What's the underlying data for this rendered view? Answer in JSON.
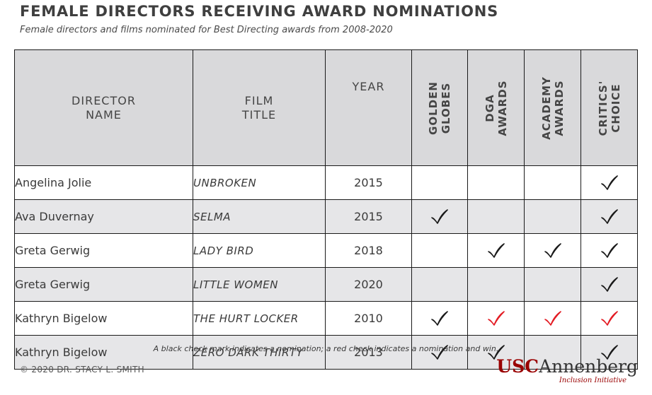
{
  "title": "FEMALE DIRECTORS RECEIVING AWARD NOMINATIONS",
  "subtitle": "Female directors and films nominated for Best Directing awards from 2008-2020",
  "colors": {
    "nomination": "#1a1a1a",
    "win": "#e31b23",
    "header_bg": "#d9d9db",
    "row_shade": "#e6e6e8"
  },
  "chart_data": {
    "type": "table",
    "columns": [
      {
        "key": "director",
        "label": "DIRECTOR\nNAME"
      },
      {
        "key": "film",
        "label": "FILM\nTITLE"
      },
      {
        "key": "year",
        "label": "YEAR"
      },
      {
        "key": "golden_globes",
        "label": "GOLDEN\nGLOBES"
      },
      {
        "key": "dga",
        "label": "DGA\nAWARDS"
      },
      {
        "key": "academy",
        "label": "ACADEMY\nAWARDS"
      },
      {
        "key": "critics_choice",
        "label": "CRITICS'\nCHOICE"
      }
    ],
    "rows": [
      {
        "director": "Angelina Jolie",
        "film": "UNBROKEN",
        "year": "2015",
        "awards": {
          "golden_globes": "none",
          "dga": "none",
          "academy": "none",
          "critics_choice": "nomination"
        }
      },
      {
        "director": "Ava Duvernay",
        "film": "SELMA",
        "year": "2015",
        "awards": {
          "golden_globes": "nomination",
          "dga": "none",
          "academy": "none",
          "critics_choice": "nomination"
        }
      },
      {
        "director": "Greta Gerwig",
        "film": "LADY BIRD",
        "year": "2018",
        "awards": {
          "golden_globes": "none",
          "dga": "nomination",
          "academy": "nomination",
          "critics_choice": "nomination"
        }
      },
      {
        "director": "Greta Gerwig",
        "film": "LITTLE WOMEN",
        "year": "2020",
        "awards": {
          "golden_globes": "none",
          "dga": "none",
          "academy": "none",
          "critics_choice": "nomination"
        }
      },
      {
        "director": "Kathryn Bigelow",
        "film": "THE HURT LOCKER",
        "year": "2010",
        "awards": {
          "golden_globes": "nomination",
          "dga": "win",
          "academy": "win",
          "critics_choice": "win"
        }
      },
      {
        "director": "Kathryn Bigelow",
        "film": "ZERO DARK THIRTY",
        "year": "2013",
        "awards": {
          "golden_globes": "nomination",
          "dga": "nomination",
          "academy": "none",
          "critics_choice": "nomination"
        }
      }
    ]
  },
  "note": "A black check mark indicates a nomination; a red check indicates a nomination and win.",
  "copyright": "© 2020 DR. STACY L. SMITH",
  "logo": {
    "usc": "USC",
    "annenberg": "Annenberg",
    "sub": "Inclusion Initiative"
  }
}
